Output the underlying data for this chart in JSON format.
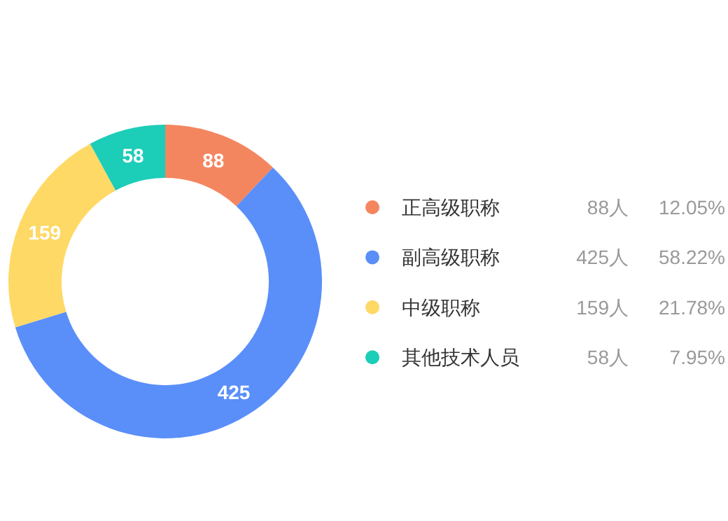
{
  "chart_data": {
    "type": "donut",
    "categories": [
      "正高级职称",
      "副高级职称",
      "中级职称",
      "其他技术人员"
    ],
    "values": [
      88,
      425,
      159,
      58
    ],
    "colors": [
      "#f4865f",
      "#5a8ff9",
      "#ffd966",
      "#1ccdb8"
    ],
    "data_labels": true,
    "legend": "right",
    "annotations": [
      "88人",
      "12.05%",
      "425人",
      "58.22%",
      "159人",
      "21.78%",
      "58人",
      "7.95%"
    ]
  }
}
